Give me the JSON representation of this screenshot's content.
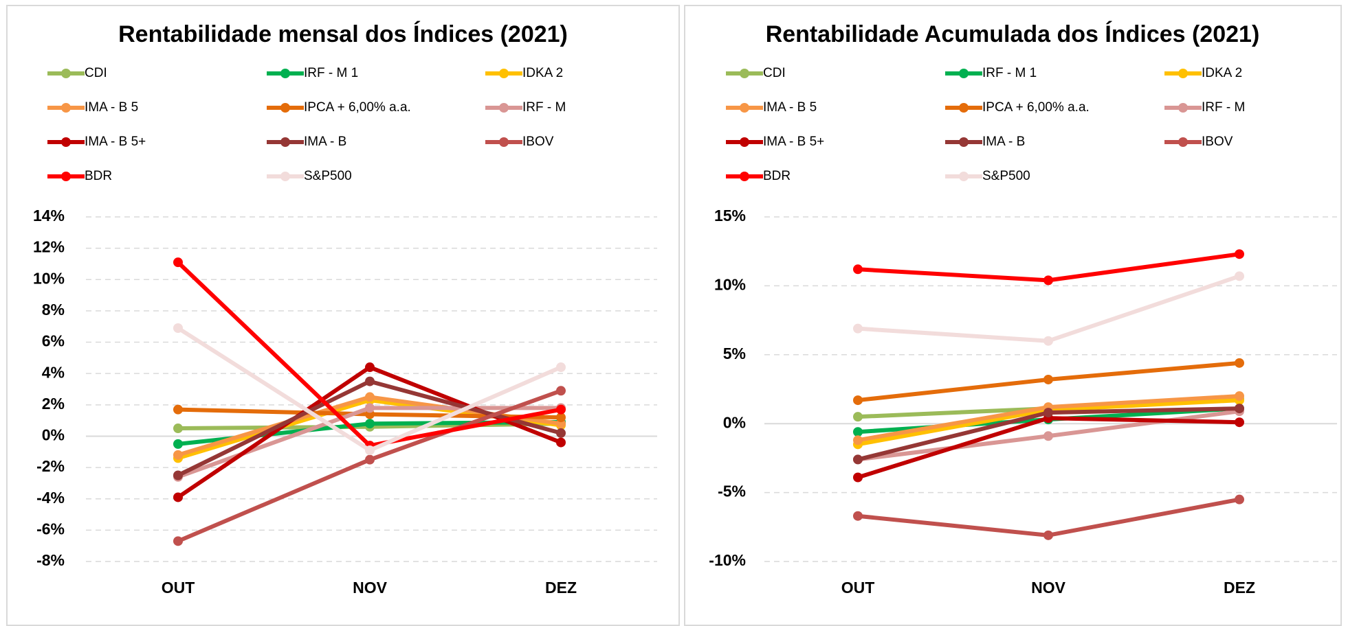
{
  "chart_data": [
    {
      "type": "line",
      "title": "Rentabilidade mensal dos Índices (2021)",
      "categories": [
        "OUT",
        "NOV",
        "DEZ"
      ],
      "ylim": [
        -8,
        14
      ],
      "yticks": [
        {
          "value": -8,
          "label": "-8%"
        },
        {
          "value": -6,
          "label": "-6%"
        },
        {
          "value": -4,
          "label": "-4%"
        },
        {
          "value": -2,
          "label": "-2%"
        },
        {
          "value": 0,
          "label": "0%"
        },
        {
          "value": 2,
          "label": "2%"
        },
        {
          "value": 4,
          "label": "4%"
        },
        {
          "value": 6,
          "label": "6%"
        },
        {
          "value": 8,
          "label": "8%"
        },
        {
          "value": 10,
          "label": "10%"
        },
        {
          "value": 12,
          "label": "12%"
        },
        {
          "value": 14,
          "label": "14%"
        }
      ],
      "grid": true,
      "legend": "top",
      "series": [
        {
          "name": "CDI",
          "color": "#9bbb59",
          "values": [
            0.5,
            0.6,
            0.8
          ]
        },
        {
          "name": "IRF - M 1",
          "color": "#00b050",
          "values": [
            -0.5,
            0.8,
            0.9
          ]
        },
        {
          "name": "IDKA 2",
          "color": "#ffc000",
          "values": [
            -1.4,
            2.3,
            0.7
          ]
        },
        {
          "name": "IMA - B 5",
          "color": "#f79646",
          "values": [
            -1.2,
            2.5,
            0.8
          ]
        },
        {
          "name": "IPCA + 6,00% a.a.",
          "color": "#e46c0a",
          "values": [
            1.7,
            1.4,
            1.2
          ]
        },
        {
          "name": "IRF - M",
          "color": "#d99694",
          "values": [
            -2.6,
            1.8,
            1.8
          ]
        },
        {
          "name": "IMA - B 5+",
          "color": "#c00000",
          "values": [
            -3.9,
            4.4,
            -0.4
          ]
        },
        {
          "name": "IMA - B",
          "color": "#953735",
          "values": [
            -2.5,
            3.5,
            0.2
          ]
        },
        {
          "name": "IBOV",
          "color": "#c0504d",
          "values": [
            -6.7,
            -1.5,
            2.9
          ]
        },
        {
          "name": "BDR",
          "color": "#ff0000",
          "values": [
            11.1,
            -0.6,
            1.7
          ]
        },
        {
          "name": "S&P500",
          "color": "#f2dcdb",
          "values": [
            6.9,
            -0.9,
            4.4
          ]
        }
      ]
    },
    {
      "type": "line",
      "title": "Rentabilidade Acumulada dos Índices (2021)",
      "categories": [
        "OUT",
        "NOV",
        "DEZ"
      ],
      "ylim": [
        -10,
        15
      ],
      "yticks": [
        {
          "value": -10,
          "label": "-10%"
        },
        {
          "value": -5,
          "label": "-5%"
        },
        {
          "value": 0,
          "label": "0%"
        },
        {
          "value": 5,
          "label": "5%"
        },
        {
          "value": 10,
          "label": "10%"
        },
        {
          "value": 15,
          "label": "15%"
        }
      ],
      "grid": true,
      "legend": "top",
      "series": [
        {
          "name": "CDI",
          "color": "#9bbb59",
          "values": [
            0.5,
            1.1,
            1.8
          ]
        },
        {
          "name": "IRF - M 1",
          "color": "#00b050",
          "values": [
            -0.6,
            0.3,
            1.1
          ]
        },
        {
          "name": "IDKA 2",
          "color": "#ffc000",
          "values": [
            -1.5,
            1.0,
            1.7
          ]
        },
        {
          "name": "IMA - B 5",
          "color": "#f79646",
          "values": [
            -1.2,
            1.2,
            2.0
          ]
        },
        {
          "name": "IPCA + 6,00% a.a.",
          "color": "#e46c0a",
          "values": [
            1.7,
            3.2,
            4.4
          ]
        },
        {
          "name": "IRF - M",
          "color": "#d99694",
          "values": [
            -2.6,
            -0.9,
            0.9
          ]
        },
        {
          "name": "IMA - B 5+",
          "color": "#c00000",
          "values": [
            -3.9,
            0.4,
            0.1
          ]
        },
        {
          "name": "IMA - B",
          "color": "#953735",
          "values": [
            -2.6,
            0.8,
            1.1
          ]
        },
        {
          "name": "IBOV",
          "color": "#c0504d",
          "values": [
            -6.7,
            -8.1,
            -5.5
          ]
        },
        {
          "name": "BDR",
          "color": "#ff0000",
          "values": [
            11.2,
            10.4,
            12.3
          ]
        },
        {
          "name": "S&P500",
          "color": "#f2dcdb",
          "values": [
            6.9,
            6.0,
            10.7
          ]
        }
      ]
    }
  ]
}
